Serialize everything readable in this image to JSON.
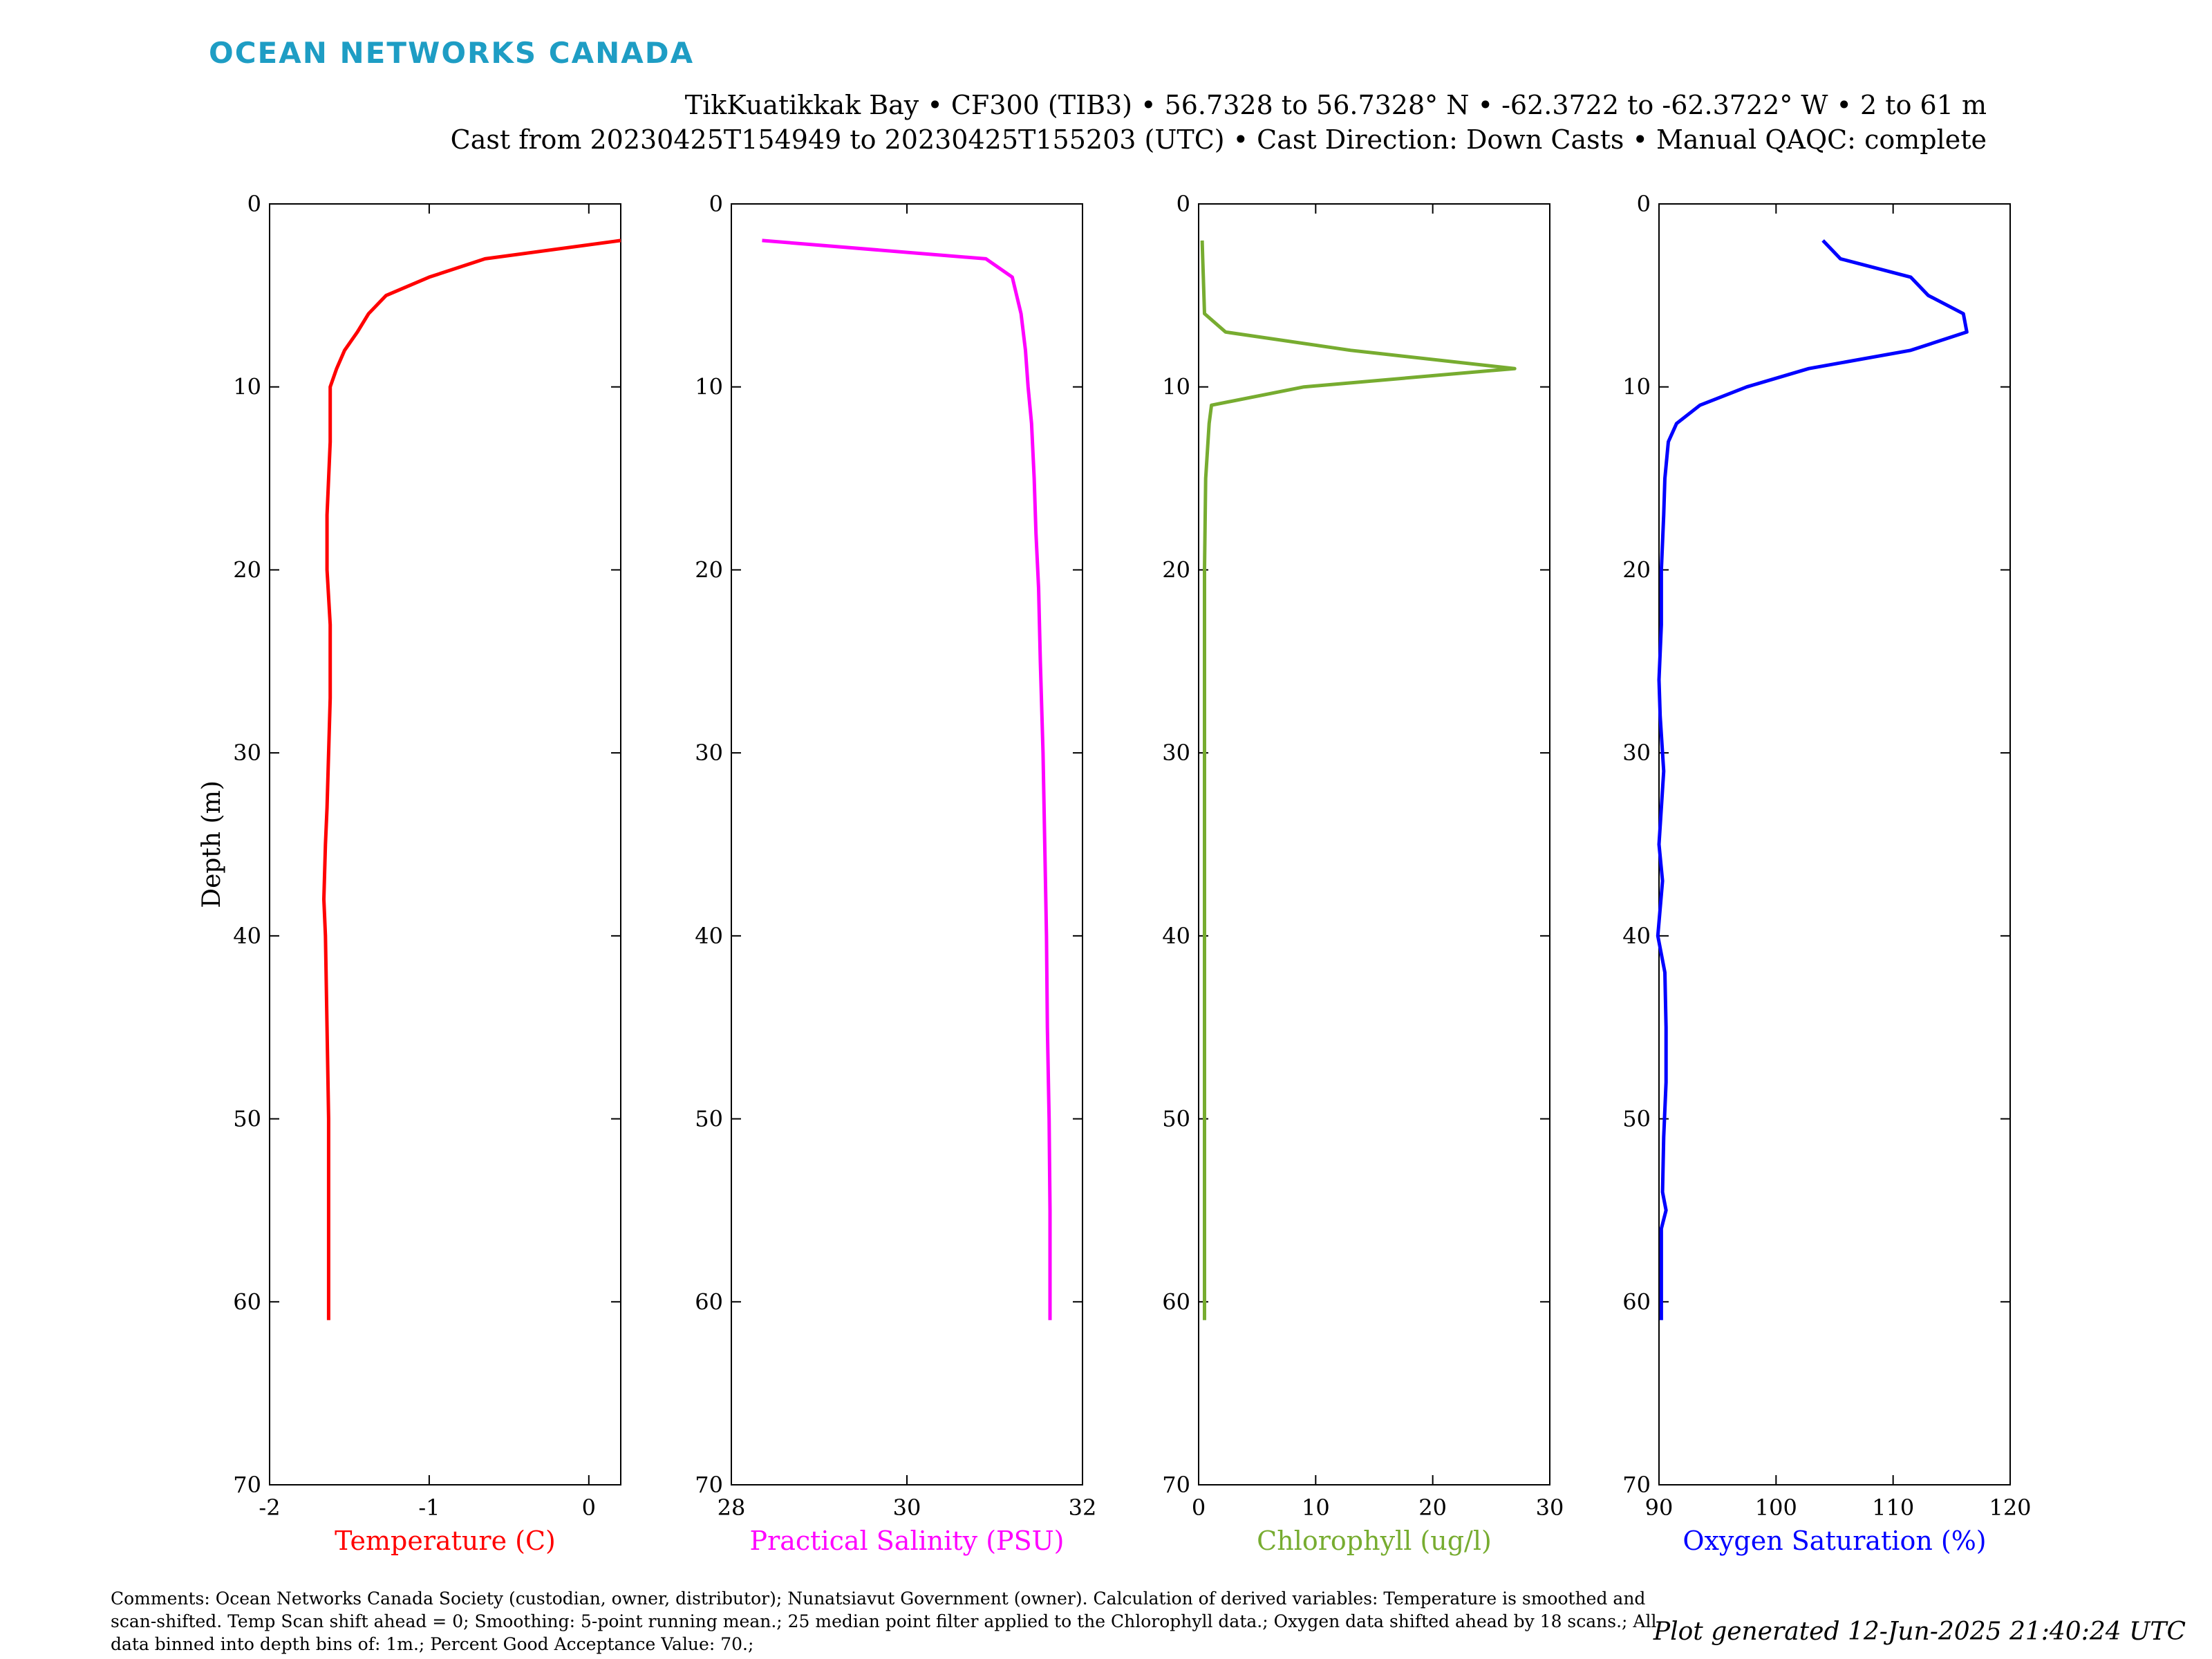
{
  "header": {
    "logo_text": "OCEAN NETWORKS CANADA",
    "title_line1": "TikKuatikkak Bay • CF300 (TIB3) • 56.7328 to 56.7328° N • -62.3722 to -62.3722° W • 2 to 61 m",
    "title_line2": "Cast from 20230425T154949 to 20230425T155203 (UTC) • Cast Direction: Down Casts • Manual QAQC: complete"
  },
  "footer": {
    "comments": "Comments: Ocean Networks Canada Society (custodian, owner, distributor); Nunatsiavut Government (owner). Calculation of derived variables: Temperature is smoothed and scan-shifted. Temp Scan shift ahead = 0; Smoothing: 5-point running mean.; 25 median point filter applied to the Chlorophyll data.; Oxygen data shifted ahead by 18 scans.; All data binned into depth bins of: 1m.; Percent Good Acceptance Value: 70.;",
    "generated": "Plot generated 12-Jun-2025 21:40:24 UTC"
  },
  "chart_data": [
    {
      "type": "line",
      "xlabel": "Temperature (C)",
      "ylabel": "Depth (m)",
      "color": "#ff0000",
      "xlim": [
        -2,
        0.2
      ],
      "ylim": [
        0,
        70
      ],
      "y_reversed": true,
      "xticks": [
        -2,
        -1,
        0
      ],
      "yticks": [
        0,
        10,
        20,
        30,
        40,
        50,
        60,
        70
      ],
      "series": [
        {
          "x": [
            0.2,
            -0.65,
            -1.0,
            -1.27,
            -1.38,
            -1.45,
            -1.53,
            -1.58,
            -1.62,
            -1.62,
            -1.62,
            -1.63,
            -1.64,
            -1.64,
            -1.62,
            -1.62,
            -1.62,
            -1.63,
            -1.64,
            -1.65,
            -1.66,
            -1.65,
            -1.64,
            -1.63,
            -1.63,
            -1.63
          ],
          "y": [
            2,
            3,
            4,
            5,
            6,
            7,
            8,
            9,
            10,
            11,
            13,
            15,
            17,
            20,
            23,
            25,
            27,
            30,
            33,
            35,
            38,
            40,
            45,
            50,
            55,
            61
          ]
        }
      ]
    },
    {
      "type": "line",
      "xlabel": "Practical Salinity (PSU)",
      "ylabel": "",
      "color": "#ff00ff",
      "xlim": [
        28,
        32
      ],
      "ylim": [
        0,
        70
      ],
      "y_reversed": true,
      "xticks": [
        28,
        30,
        32
      ],
      "yticks": [
        0,
        10,
        20,
        30,
        40,
        50,
        60,
        70
      ],
      "series": [
        {
          "x": [
            28.35,
            30.9,
            31.2,
            31.3,
            31.35,
            31.38,
            31.42,
            31.45,
            31.47,
            31.5,
            31.52,
            31.55,
            31.57,
            31.59,
            31.6,
            31.62,
            31.63,
            31.63
          ],
          "y": [
            2,
            3,
            4,
            6,
            8,
            10,
            12,
            15,
            18,
            21,
            25,
            30,
            35,
            40,
            45,
            50,
            55,
            61
          ]
        }
      ]
    },
    {
      "type": "line",
      "xlabel": "Chlorophyll (ug/l)",
      "ylabel": "",
      "color": "#77ac30",
      "xlim": [
        0,
        30
      ],
      "ylim": [
        0,
        70
      ],
      "y_reversed": true,
      "xticks": [
        0,
        10,
        20,
        30
      ],
      "yticks": [
        0,
        10,
        20,
        30,
        40,
        50,
        60,
        70
      ],
      "series": [
        {
          "x": [
            0.3,
            0.35,
            0.4,
            0.5,
            2.3,
            13.0,
            27.0,
            9.0,
            1.1,
            0.9,
            0.6,
            0.5,
            0.5,
            0.5,
            0.5,
            0.5,
            0.5,
            0.5,
            0.5,
            0.5,
            0.5
          ],
          "y": [
            2,
            3,
            4,
            6,
            7,
            8,
            9,
            10,
            11,
            12,
            15,
            20,
            25,
            30,
            35,
            40,
            42,
            45,
            50,
            57,
            61
          ]
        }
      ]
    },
    {
      "type": "line",
      "xlabel": "Oxygen Saturation (%)",
      "ylabel": "",
      "color": "#0000ff",
      "xlim": [
        90,
        120
      ],
      "ylim": [
        0,
        70
      ],
      "y_reversed": true,
      "xticks": [
        90,
        100,
        110,
        120
      ],
      "yticks": [
        0,
        10,
        20,
        30,
        40,
        50,
        60,
        70
      ],
      "series": [
        {
          "x": [
            104.0,
            105.5,
            111.5,
            113.0,
            116.0,
            116.3,
            111.5,
            102.8,
            97.5,
            93.5,
            91.5,
            90.8,
            90.5,
            90.4,
            90.2,
            90.2,
            90.0,
            90.1,
            90.4,
            90.0,
            90.3,
            89.9,
            90.5,
            90.6,
            90.6,
            90.4,
            90.3,
            90.6,
            90.2,
            90.2
          ],
          "y": [
            2,
            3,
            4,
            5,
            6,
            7,
            8,
            9,
            10,
            11,
            12,
            13,
            15,
            17,
            20,
            23,
            26,
            28,
            31,
            35,
            37,
            40,
            42,
            45,
            48,
            51,
            54,
            55,
            56,
            61
          ]
        }
      ]
    }
  ]
}
